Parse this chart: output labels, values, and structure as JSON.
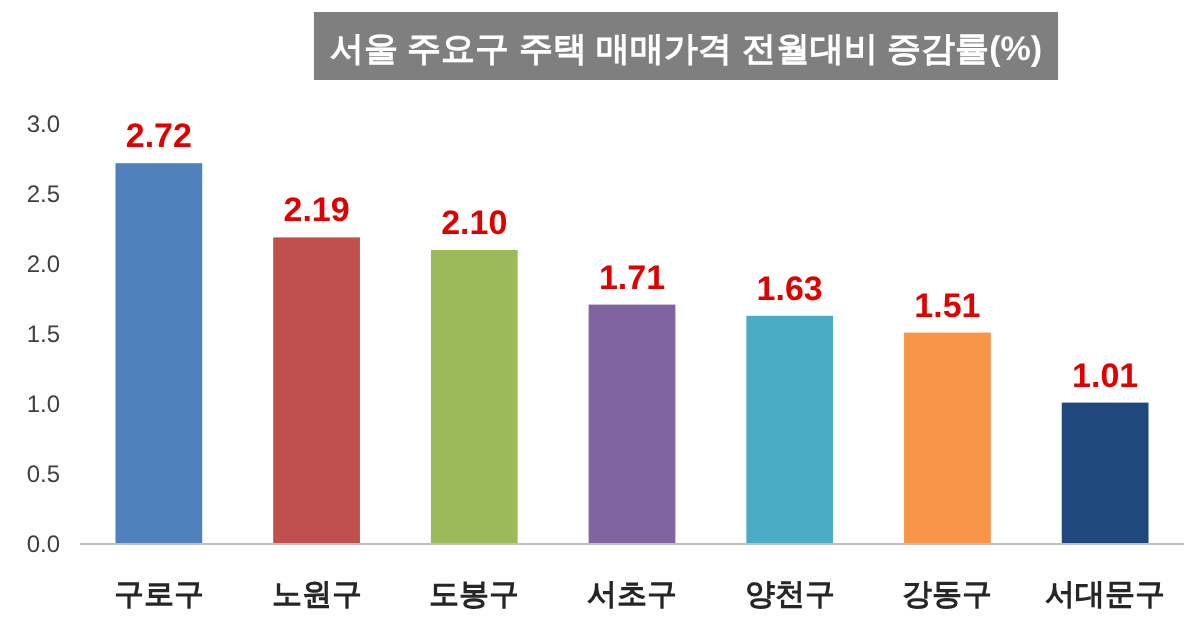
{
  "chart_data": {
    "type": "bar",
    "title": "서울 주요구 주택 매매가격 전월대비 증감률(%)",
    "categories": [
      "구로구",
      "노원구",
      "도봉구",
      "서초구",
      "양천구",
      "강동구",
      "서대문구"
    ],
    "values": [
      2.72,
      2.19,
      2.1,
      1.71,
      1.63,
      1.51,
      1.01
    ],
    "value_labels": [
      "2.72",
      "2.19",
      "2.10",
      "1.71",
      "1.63",
      "1.51",
      "1.01"
    ],
    "colors": [
      "#4f81bd",
      "#c0504d",
      "#9bbb59",
      "#8064a2",
      "#4bacc6",
      "#f79646",
      "#1f497d"
    ],
    "ylim": [
      0,
      3
    ],
    "yticks": [
      {
        "value": 0,
        "label": "0.0"
      },
      {
        "value": 0.5,
        "label": "0.5"
      },
      {
        "value": 1,
        "label": "1.0"
      },
      {
        "value": 1.5,
        "label": "1.5"
      },
      {
        "value": 2,
        "label": "2.0"
      },
      {
        "value": 2.5,
        "label": "2.5"
      },
      {
        "value": 3,
        "label": "3.0"
      }
    ]
  }
}
